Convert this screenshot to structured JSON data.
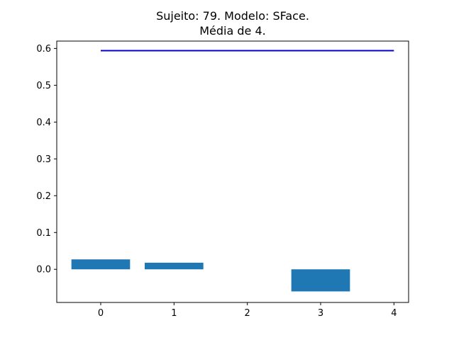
{
  "chart_data": {
    "type": "bar",
    "title_lines": [
      "Sujeito: 79. Modelo: SFace.",
      "Média de 4."
    ],
    "xlabel": "",
    "ylabel": "",
    "categories": [
      0,
      1,
      2,
      3
    ],
    "values": [
      0.027,
      0.018,
      0.0,
      -0.06
    ],
    "bar_color": "#1f77b4",
    "reference_line": {
      "y": 0.594,
      "x_start": 0,
      "x_end": 4,
      "color": "#0000cc"
    },
    "xlim": [
      -0.6,
      4.2
    ],
    "ylim": [
      -0.09,
      0.62
    ],
    "x_ticks": [
      0,
      1,
      2,
      3,
      4
    ],
    "x_tick_labels": [
      "0",
      "1",
      "2",
      "3",
      "4"
    ],
    "y_ticks": [
      0.0,
      0.1,
      0.2,
      0.3,
      0.4,
      0.5,
      0.6
    ],
    "y_tick_labels": [
      "0.0",
      "0.1",
      "0.2",
      "0.3",
      "0.4",
      "0.5",
      "0.6"
    ],
    "grid": false,
    "legend": false
  }
}
